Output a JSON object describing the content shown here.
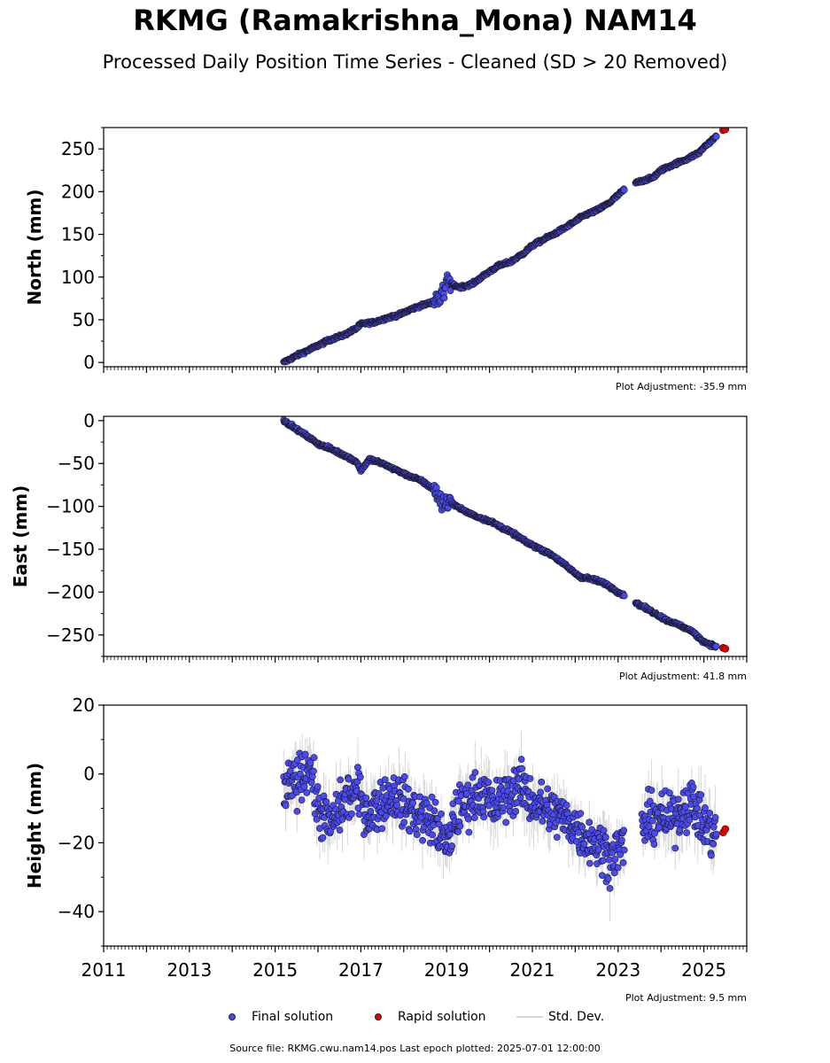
{
  "title": "RKMG (Ramakrishna_Mona) NAM14",
  "subtitle": "Processed Daily Position Time Series - Cleaned (SD > 20 Removed)",
  "footer": "Source file: RKMG.cwu.nam14.pos  Last epoch plotted: 2025-07-01 12:00:00",
  "legend": {
    "final": "Final solution",
    "rapid": "Rapid solution",
    "stddev": "Std. Dev."
  },
  "colors": {
    "final": "#4a4af0",
    "rapid": "#e00000",
    "stddev": "#bdbdbd",
    "edge": "#1a1a2e"
  },
  "chart_data": [
    {
      "type": "scatter",
      "panel": "north",
      "ylabel": "North (mm)",
      "adjustment": "Plot Adjustment: -35.9 mm",
      "xlim": [
        2011,
        2026
      ],
      "ylim": [
        -5,
        275
      ],
      "yticks": [
        0,
        50,
        100,
        150,
        200,
        250
      ],
      "ytick_labels": [
        "0",
        "50",
        "100",
        "150",
        "200",
        "250"
      ],
      "series": [
        {
          "name": "Final solution",
          "x": [
            2015.2,
            2015.5,
            2015.8,
            2016.0,
            2016.3,
            2016.6,
            2016.9,
            2017.0,
            2017.3,
            2017.6,
            2017.9,
            2018.2,
            2018.5,
            2018.8,
            2018.95,
            2019.0,
            2019.3,
            2019.6,
            2019.9,
            2020.2,
            2020.5,
            2020.8,
            2021.0,
            2021.3,
            2021.6,
            2021.9,
            2022.2,
            2022.5,
            2022.8,
            2023.0,
            2023.2,
            2023.5,
            2023.8,
            2024.0,
            2024.3,
            2024.6,
            2024.9,
            2025.0,
            2025.3
          ],
          "y": [
            0,
            8,
            15,
            20,
            27,
            32,
            40,
            45,
            47,
            52,
            56,
            63,
            68,
            73,
            82,
            94,
            88,
            92,
            103,
            113,
            118,
            128,
            137,
            145,
            153,
            162,
            172,
            178,
            187,
            196,
            205,
            212,
            216,
            225,
            232,
            238,
            246,
            252,
            265
          ]
        },
        {
          "name": "Rapid solution",
          "x": [
            2025.45,
            2025.5
          ],
          "y": [
            272,
            273
          ]
        }
      ]
    },
    {
      "type": "scatter",
      "panel": "east",
      "ylabel": "East (mm)",
      "adjustment": "Plot Adjustment: 41.8 mm",
      "xlim": [
        2011,
        2026
      ],
      "ylim": [
        -275,
        5
      ],
      "yticks": [
        0,
        -50,
        -100,
        -150,
        -200,
        -250
      ],
      "ytick_labels": [
        "0",
        "−50",
        "−100",
        "−150",
        "−200",
        "−250"
      ],
      "series": [
        {
          "name": "Final solution",
          "x": [
            2015.2,
            2015.5,
            2015.8,
            2016.0,
            2016.3,
            2016.6,
            2016.9,
            2017.0,
            2017.2,
            2017.5,
            2017.8,
            2018.1,
            2018.4,
            2018.7,
            2018.9,
            2019.1,
            2019.4,
            2019.7,
            2020.0,
            2020.3,
            2020.6,
            2020.9,
            2021.2,
            2021.5,
            2021.8,
            2022.1,
            2022.4,
            2022.7,
            2023.0,
            2023.3,
            2023.5,
            2023.8,
            2024.1,
            2024.4,
            2024.7,
            2025.0,
            2025.3
          ],
          "y": [
            0,
            -10,
            -20,
            -27,
            -33,
            -40,
            -48,
            -58,
            -45,
            -50,
            -57,
            -64,
            -70,
            -80,
            -95,
            -95,
            -105,
            -112,
            -117,
            -125,
            -133,
            -143,
            -150,
            -158,
            -170,
            -182,
            -185,
            -190,
            -200,
            -208,
            -215,
            -223,
            -232,
            -238,
            -245,
            -258,
            -264
          ]
        },
        {
          "name": "Rapid solution",
          "x": [
            2025.45,
            2025.5
          ],
          "y": [
            -265,
            -266
          ]
        }
      ]
    },
    {
      "type": "scatter",
      "panel": "height",
      "ylabel": "Height (mm)",
      "adjustment": "Plot Adjustment: 9.5 mm",
      "xlim": [
        2011,
        2026
      ],
      "ylim": [
        -50,
        20
      ],
      "yticks": [
        20,
        0,
        -20,
        -40
      ],
      "ytick_labels": [
        "20",
        "0",
        "−20",
        "−40"
      ],
      "xticks": [
        2011,
        2013,
        2015,
        2017,
        2019,
        2021,
        2023,
        2025
      ],
      "xtick_labels": [
        "2011",
        "2013",
        "2015",
        "2017",
        "2019",
        "2021",
        "2023",
        "2025"
      ],
      "series": [
        {
          "name": "Final solution",
          "x": [
            2015.2,
            2015.5,
            2015.8,
            2016.0,
            2016.3,
            2016.6,
            2016.9,
            2017.2,
            2017.5,
            2017.8,
            2018.1,
            2018.4,
            2018.7,
            2018.9,
            2019.0,
            2019.2,
            2019.5,
            2019.8,
            2020.1,
            2020.4,
            2020.7,
            2021.0,
            2021.3,
            2021.6,
            2021.9,
            2022.2,
            2022.5,
            2022.8,
            2023.0,
            2023.6,
            2023.9,
            2024.2,
            2024.5,
            2024.7,
            2025.0,
            2025.3
          ],
          "y": [
            -5,
            -2,
            3,
            -10,
            -15,
            -8,
            -5,
            -12,
            -8,
            -6,
            -10,
            -12,
            -14,
            -18,
            -22,
            -12,
            -8,
            -5,
            -10,
            -6,
            -3,
            -8,
            -10,
            -12,
            -14,
            -18,
            -20,
            -24,
            -22,
            -15,
            -12,
            -14,
            -10,
            -8,
            -15,
            -18
          ]
        },
        {
          "name": "Rapid solution",
          "x": [
            2025.45,
            2025.5
          ],
          "y": [
            -17,
            -16
          ]
        }
      ]
    }
  ]
}
